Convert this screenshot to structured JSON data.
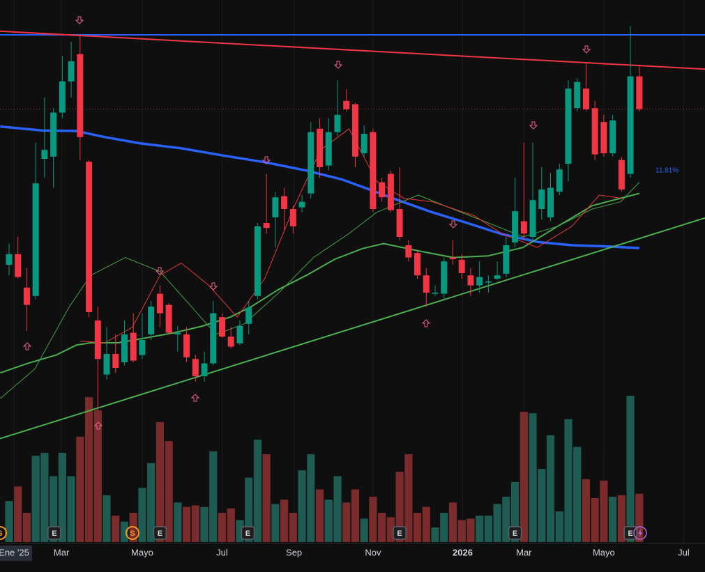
{
  "chart_data": {
    "type": "candlestick",
    "xlim": [
      -1.02,
      78.4
    ],
    "ylim": [
      0,
      100
    ],
    "vlim": [
      0,
      100
    ],
    "up_color": "#089981",
    "down_color": "#f23645",
    "volume_up_color": "#1d5b53",
    "volume_down_color": "#7a2c2d",
    "xticks": [
      {
        "value": 0.55,
        "label": "Ene '25"
      },
      {
        "value": 5.9,
        "label": "Mar"
      },
      {
        "value": 15.0,
        "label": "Mayo"
      },
      {
        "value": 24.0,
        "label": "Jul"
      },
      {
        "value": 32.1,
        "label": "Sep"
      },
      {
        "value": 41.0,
        "label": "Nov"
      },
      {
        "value": 51.1,
        "label": "2026"
      },
      {
        "value": 58.0,
        "label": "Mar"
      },
      {
        "value": 67.0,
        "label": "Mayo"
      },
      {
        "value": 76.0,
        "label": "Jul"
      }
    ],
    "x": [
      0,
      1,
      2,
      3,
      4,
      5,
      6,
      7,
      8,
      9,
      10,
      11,
      12,
      13,
      14,
      15,
      16,
      17,
      18,
      19,
      20,
      21,
      22,
      23,
      24,
      25,
      26,
      27,
      28,
      29,
      30,
      31,
      32,
      33,
      34,
      35,
      36,
      37,
      38,
      39,
      40,
      41,
      42,
      43,
      44,
      45,
      46,
      47,
      48,
      49,
      50,
      51,
      52,
      53,
      54,
      55,
      56,
      57,
      58,
      59,
      60,
      61,
      62,
      63,
      64,
      65,
      66,
      67,
      68,
      69,
      70,
      71
    ],
    "open": [
      52.5,
      54.4,
      48.4,
      46.9,
      71.5,
      71.9,
      79.8,
      85.4,
      90.3,
      71,
      42.5,
      32.8,
      36.5,
      35,
      40.3,
      36.3,
      40,
      47.3,
      45.3,
      40,
      40,
      35.6,
      32.5,
      34.8,
      43.1,
      39.6,
      38.4,
      41.9,
      46.9,
      60,
      61,
      64.8,
      62.5,
      62.8,
      65.3,
      76.9,
      70.3,
      76.3,
      81.9,
      81.3,
      72.5,
      76.3,
      67.3,
      68.8,
      62.5,
      56,
      54.6,
      50.6,
      47.3,
      47.3,
      53.8,
      53.4,
      50.6,
      48.8,
      49.3,
      50,
      50.9,
      56.5,
      60.3,
      57.5,
      62.5,
      61,
      65.6,
      70.6,
      80.6,
      84.1,
      80.6,
      78.1,
      72.5,
      71.3,
      68.8,
      86.3
    ],
    "high": [
      56.3,
      57.5,
      51.9,
      74.4,
      82.5,
      80.6,
      90,
      92.5,
      93.8,
      71.3,
      45,
      41.3,
      40,
      42.5,
      43.8,
      43.8,
      46,
      48.8,
      45.6,
      41.5,
      41.3,
      36.3,
      36.9,
      46,
      43.8,
      41.3,
      42.5,
      46,
      60,
      68.8,
      65.6,
      66.3,
      63.1,
      65,
      78.1,
      78.8,
      78.8,
      85.6,
      84,
      81.5,
      77.5,
      76.9,
      68.1,
      69.4,
      70,
      56.9,
      55,
      51.9,
      48.8,
      53.8,
      56.9,
      54.4,
      51.9,
      53.1,
      50.6,
      53.1,
      57.5,
      68.1,
      74.4,
      74.4,
      70,
      69,
      70.6,
      85.6,
      86,
      88.8,
      81.9,
      79.4,
      79.4,
      71.9,
      95.3,
      88.1
    ],
    "low": [
      50.6,
      50,
      40.6,
      46.3,
      68.1,
      66.3,
      78.8,
      82.5,
      71.3,
      43.1,
      26.3,
      31.9,
      33.1,
      34.4,
      35,
      35.6,
      39,
      41.3,
      40,
      36.9,
      35,
      31.5,
      31.5,
      34.4,
      39.4,
      37.5,
      38.1,
      40,
      46.3,
      58.1,
      55.6,
      58.8,
      58.1,
      61.9,
      64.4,
      68.1,
      69.4,
      75.6,
      80,
      70,
      71.9,
      61.9,
      63.8,
      61.9,
      56.9,
      53.1,
      50,
      45,
      46.9,
      46.3,
      52.5,
      50,
      46.9,
      47.5,
      47.5,
      49.8,
      50.3,
      55.6,
      56.9,
      56.9,
      60.6,
      60.3,
      65,
      67.5,
      80,
      80,
      71.3,
      71.9,
      71.9,
      65.6,
      68.1,
      80
    ],
    "close": [
      54.4,
      50.3,
      45.3,
      67.1,
      73.1,
      79.8,
      85.4,
      89,
      75.4,
      44,
      35.6,
      36.5,
      34,
      40,
      35.3,
      39,
      45,
      43.8,
      40.3,
      40.3,
      35.9,
      32.5,
      34.8,
      43.8,
      39.6,
      37.8,
      41.5,
      44.8,
      59.4,
      59.1,
      64.6,
      62.5,
      59.4,
      63.8,
      76.3,
      70,
      76.3,
      79.4,
      80.4,
      71.9,
      76,
      62.5,
      64.6,
      62.3,
      57.5,
      53.8,
      50.6,
      47.5,
      47.5,
      53.1,
      53.5,
      51,
      48.8,
      50.3,
      49.5,
      50.6,
      56,
      62.1,
      58.1,
      64.1,
      66,
      66.3,
      69.6,
      84.1,
      85.3,
      80.4,
      72.3,
      72.5,
      78.4,
      66,
      86.3,
      80.4
    ],
    "volume": [
      28,
      38,
      20,
      59,
      61,
      45,
      61,
      45,
      72,
      99,
      90,
      32,
      18,
      14,
      20,
      37,
      54,
      82,
      69,
      27,
      24,
      25,
      24,
      62,
      20,
      23,
      15,
      44,
      70,
      60,
      26,
      29,
      20,
      49,
      60,
      36,
      29,
      45,
      27,
      36,
      16,
      31,
      20,
      17,
      48,
      60,
      20,
      24,
      10,
      20,
      27,
      15,
      16,
      18,
      18,
      26,
      31,
      41,
      89,
      88,
      50,
      73,
      21,
      84,
      65,
      43,
      30,
      42,
      31,
      32,
      100,
      33
    ],
    "lines": [
      {
        "color": "#2962ff",
        "width": 3.5,
        "x": [
          -1,
          3.7,
          7.6,
          10.8,
          14.7,
          19.4,
          24.1,
          28.8,
          33.5,
          37.5,
          40.6,
          43.8,
          47.7,
          51.6,
          55.5,
          59.5,
          63.4,
          67.3,
          71
        ],
        "values": [
          77.3,
          76.6,
          76.5,
          75.4,
          74.3,
          73.4,
          72.1,
          70.9,
          69.4,
          67.8,
          66,
          64.1,
          61.9,
          60,
          58,
          56.6,
          56,
          55.8,
          55.5
        ]
      },
      {
        "color": "#4caf50",
        "width": 2,
        "x": [
          -1,
          2.1,
          5.3,
          7.6,
          9.2,
          12.3,
          15.5,
          18.6,
          21.8,
          24.9,
          27.3,
          30.4,
          33.5,
          36.7,
          39.8,
          42.2,
          46.1,
          50,
          54,
          57.9,
          61.8,
          65.7,
          68.1,
          71
        ],
        "values": [
          33.1,
          34.8,
          36.3,
          38.1,
          38.5,
          38.5,
          39.4,
          40.3,
          41.5,
          43.1,
          45,
          48.1,
          50.6,
          53.5,
          55.4,
          56.3,
          55,
          53.8,
          54.1,
          55.6,
          59.4,
          63.1,
          64.1,
          65.3
        ]
      },
      {
        "color": "#43a047",
        "width": 1,
        "x": [
          -1,
          2.9,
          6.8,
          9.2,
          13.1,
          17,
          20.2,
          23.3,
          26.5,
          30.4,
          34.3,
          38.3,
          41.4,
          46.1,
          50,
          54,
          57.9,
          61.8,
          65.7,
          68.9,
          71
        ],
        "values": [
          28.5,
          33.8,
          45,
          50.6,
          53.8,
          51.3,
          45.6,
          40,
          41.9,
          47.5,
          53.8,
          58.1,
          61.9,
          65,
          62.5,
          60,
          57.5,
          59.4,
          62.5,
          63.8,
          67.3
        ]
      },
      {
        "color": "#e53935",
        "width": 1,
        "x": [
          8,
          10.8,
          13.9,
          17,
          19.4,
          22.5,
          25.7,
          28.8,
          32,
          35.1,
          38.3,
          41.4,
          44.5,
          47.7,
          52.4,
          55.5,
          59.5,
          63.4,
          66.5,
          69.1
        ],
        "values": [
          38.8,
          38.5,
          41.3,
          50.6,
          52.8,
          48.8,
          43.1,
          50,
          62.5,
          73.1,
          76.9,
          67.5,
          64.4,
          63.8,
          61.3,
          58.1,
          55.6,
          59.4,
          65,
          64.4
        ]
      },
      {
        "color": "#2962ff",
        "width": 2,
        "x": [
          -1.02,
          78.4
        ],
        "values": [
          93.75,
          93.75
        ]
      },
      {
        "color": "#f23645",
        "width": 2,
        "x": [
          -1.02,
          78.4
        ],
        "values": [
          94.4,
          87.6
        ]
      },
      {
        "color": "#4caf50",
        "width": 2,
        "x": [
          -1.02,
          78.4
        ],
        "values": [
          21.3,
          60.9
        ]
      }
    ],
    "price_line": {
      "value": 80.4,
      "color": "#f23645"
    },
    "annotation": "11.81%",
    "events": [
      {
        "label": "S",
        "x": -1.02,
        "color": "#f7931a"
      },
      {
        "label": "E",
        "x": 5.1,
        "color": "#5d606b"
      },
      {
        "label": "S",
        "x": 13.9,
        "color": "#f7931a"
      },
      {
        "label": "E",
        "x": 17.0,
        "color": "#5d606b"
      },
      {
        "label": "E",
        "x": 26.9,
        "color": "#5d606b"
      },
      {
        "label": "E",
        "x": 44.0,
        "color": "#5d606b"
      },
      {
        "label": "E",
        "x": 57.0,
        "color": "#5d606b"
      },
      {
        "label": "E",
        "x": 70.0,
        "color": "#5d606b"
      }
    ]
  }
}
